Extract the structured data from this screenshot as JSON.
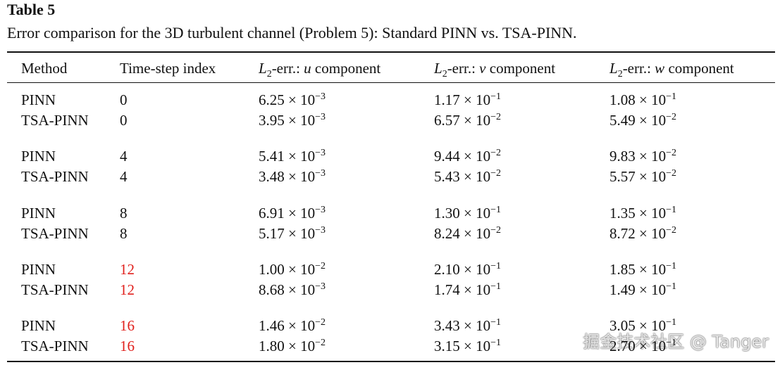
{
  "header": {
    "label": "Table 5",
    "caption": "Error comparison for the 3D turbulent channel (Problem 5): Standard PINN vs. TSA-PINN."
  },
  "highlight_color": "#e0201c",
  "table": {
    "columns": [
      {
        "text": "Method"
      },
      {
        "text": "Time-step index"
      },
      {
        "l": "L",
        "sub": "2",
        "rest": "-err.: ",
        "var": "u",
        "tail": " component"
      },
      {
        "l": "L",
        "sub": "2",
        "rest": "-err.: ",
        "var": "v",
        "tail": " component"
      },
      {
        "l": "L",
        "sub": "2",
        "rest": "-err.: ",
        "var": "w",
        "tail": " component"
      }
    ],
    "groups": [
      {
        "highlight": false,
        "rows": [
          [
            "PINN",
            "0",
            {
              "base": "6.25 × 10",
              "exp": "−3"
            },
            {
              "base": "1.17 × 10",
              "exp": "−1"
            },
            {
              "base": "1.08 × 10",
              "exp": "−1"
            }
          ],
          [
            "TSA-PINN",
            "0",
            {
              "base": "3.95 × 10",
              "exp": "−3"
            },
            {
              "base": "6.57 × 10",
              "exp": "−2"
            },
            {
              "base": "5.49 × 10",
              "exp": "−2"
            }
          ]
        ]
      },
      {
        "highlight": false,
        "rows": [
          [
            "PINN",
            "4",
            {
              "base": "5.41 × 10",
              "exp": "−3"
            },
            {
              "base": "9.44 × 10",
              "exp": "−2"
            },
            {
              "base": "9.83 × 10",
              "exp": "−2"
            }
          ],
          [
            "TSA-PINN",
            "4",
            {
              "base": "3.48 × 10",
              "exp": "−3"
            },
            {
              "base": "5.43 × 10",
              "exp": "−2"
            },
            {
              "base": "5.57 × 10",
              "exp": "−2"
            }
          ]
        ]
      },
      {
        "highlight": false,
        "rows": [
          [
            "PINN",
            "8",
            {
              "base": "6.91 × 10",
              "exp": "−3"
            },
            {
              "base": "1.30 × 10",
              "exp": "−1"
            },
            {
              "base": "1.35 × 10",
              "exp": "−1"
            }
          ],
          [
            "TSA-PINN",
            "8",
            {
              "base": "5.17 × 10",
              "exp": "−3"
            },
            {
              "base": "8.24 × 10",
              "exp": "−2"
            },
            {
              "base": "8.72 × 10",
              "exp": "−2"
            }
          ]
        ]
      },
      {
        "highlight": true,
        "rows": [
          [
            "PINN",
            "12",
            {
              "base": "1.00 × 10",
              "exp": "−2"
            },
            {
              "base": "2.10 × 10",
              "exp": "−1"
            },
            {
              "base": "1.85 × 10",
              "exp": "−1"
            }
          ],
          [
            "TSA-PINN",
            "12",
            {
              "base": "8.68 × 10",
              "exp": "−3"
            },
            {
              "base": "1.74 × 10",
              "exp": "−1"
            },
            {
              "base": "1.49 × 10",
              "exp": "−1"
            }
          ]
        ]
      },
      {
        "highlight": true,
        "rows": [
          [
            "PINN",
            "16",
            {
              "base": "1.46 × 10",
              "exp": "−2"
            },
            {
              "base": "3.43 × 10",
              "exp": "−1"
            },
            {
              "base": "3.05 × 10",
              "exp": "−1"
            }
          ],
          [
            "TSA-PINN",
            "16",
            {
              "base": "1.80 × 10",
              "exp": "−2"
            },
            {
              "base": "3.15 × 10",
              "exp": "−1"
            },
            {
              "base": "2.70 × 10",
              "exp": "−1"
            }
          ]
        ]
      }
    ]
  },
  "watermark": "掘金技术社区 @ Tanger"
}
